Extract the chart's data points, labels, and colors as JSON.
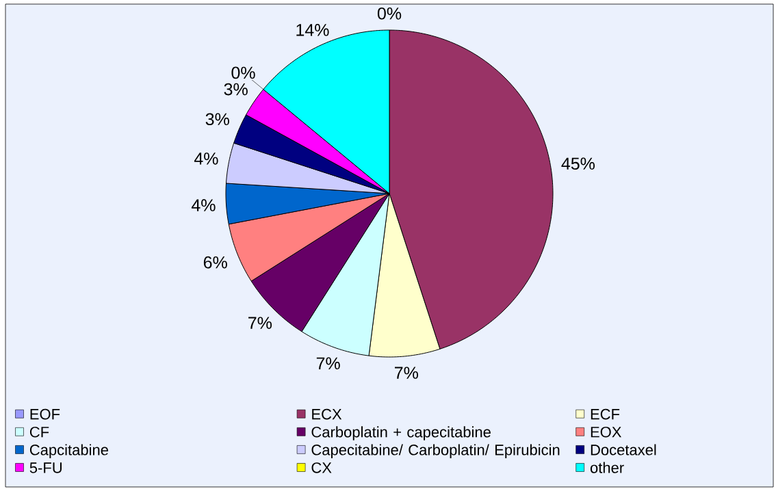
{
  "chart_data": {
    "type": "pie",
    "categories": [
      "EOF",
      "ECX",
      "ECF",
      "CF",
      "Carboplatin + capecitabine",
      "EOX",
      "Capcitabine",
      "Capecitabine/ Carboplatin/ Epirubicin",
      "Docetaxel",
      "5-FU",
      "CX",
      "other"
    ],
    "values": [
      0,
      45,
      7,
      7,
      7,
      6,
      4,
      4,
      3,
      3,
      0,
      14
    ],
    "colors": [
      "#9999ff",
      "#993366",
      "#ffffcc",
      "#ccffff",
      "#660066",
      "#ff8080",
      "#0066cc",
      "#ccccff",
      "#000080",
      "#ff00ff",
      "#ffff00",
      "#00ffff"
    ],
    "value_labels": [
      "0%",
      "45%",
      "7%",
      "7%",
      "7%",
      "6%",
      "4%",
      "4%",
      "3%",
      "3%",
      "0%",
      "14%"
    ],
    "legend": "bottom"
  }
}
